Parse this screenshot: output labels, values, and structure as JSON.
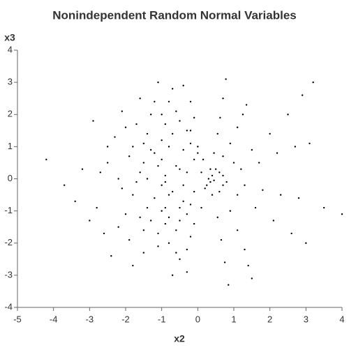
{
  "chart_data": {
    "type": "scatter",
    "title": "Nonindependent Random Normal Variables",
    "x_label": "x2",
    "y_label": "x3",
    "color": "#000000",
    "xlim": [
      -5,
      4
    ],
    "ylim": [
      -4,
      4
    ],
    "xticks": [
      -5,
      -4,
      -3,
      -2,
      -1,
      0,
      1,
      2,
      3,
      4
    ],
    "yticks": [
      -4,
      -3,
      -2,
      -1,
      0,
      1,
      2,
      3,
      4
    ],
    "x": [
      -0.5,
      -1.2,
      -0.8,
      -1.6,
      -0.3,
      -0.9,
      -2.1,
      -0.6,
      -1.4,
      -0.2,
      -1.0,
      -1.8,
      -0.4,
      -2.5,
      -1.1,
      -0.7,
      -1.5,
      -0.1,
      -2.8,
      -0.9,
      -1.3,
      -0.5,
      -1.9,
      -3.2,
      -0.3,
      -1.7,
      -0.8,
      -2.3,
      -1.0,
      -0.6,
      -1.2,
      -0.2,
      -2.0,
      -0.4,
      -1.5,
      -3.7,
      -0.7,
      -1.1,
      -2.6,
      -0.9,
      -1.4,
      -0.1,
      -1.8,
      -0.5,
      -2.2,
      -0.8,
      -1.6,
      -0.3,
      -1.0,
      -2.9,
      -0.6,
      -1.3,
      -0.2,
      -2.4,
      -1.7,
      -0.4,
      -0.9,
      -1.1,
      -3.0,
      -0.7,
      -1.9,
      -0.5,
      -1.2,
      -2.7,
      -0.3,
      -1.5,
      -0.8,
      -2.0,
      -1.0,
      -0.1,
      -4.2,
      -0.6,
      -1.4,
      -2.2,
      -0.4,
      -1.6,
      -0.9,
      -3.4,
      -0.2,
      -1.3,
      -2.5,
      -0.7,
      -1.8,
      -1.1,
      -0.5,
      -2.1,
      -0.8,
      -1.5,
      -0.3,
      -1.0,
      0.1,
      0.2,
      0,
      0.1,
      -0.1,
      0.35,
      0.45,
      0.55,
      0.62,
      0.7,
      0.78,
      0.5,
      0.7,
      0.9,
      1.1,
      1.25,
      1.35,
      0.6,
      1.0,
      1.5,
      2.0,
      2.5,
      2.9,
      3.2,
      0.7,
      1.2,
      1.7,
      2.2,
      2.7,
      3.1,
      0.8,
      1.3,
      1.8,
      2.3,
      2.8,
      3.5,
      4.0,
      0.7,
      1.1,
      1.6,
      2.1,
      2.6,
      3.0,
      0.6,
      0.9,
      1.1,
      1.3,
      1.4,
      1.5,
      0.4,
      0.55,
      0.65,
      0.75,
      0.85,
      -0.2,
      0,
      0.15,
      0.3,
      0.35,
      0.4,
      0.25,
      0.45
    ],
    "values": [
      0.3,
      0.8,
      -0.5,
      0.2,
      1.5,
      -1.4,
      -0.3,
      2.1,
      -0.9,
      -1.8,
      1.2,
      1.0,
      -0.7,
      0.5,
      -2.1,
      2.8,
      -1.6,
      0.6,
      -0.9,
      0.1,
      2.0,
      -2.5,
      -1.9,
      0.3,
      -1.1,
      1.7,
      1.0,
      1.3,
      -0.2,
      -1.6,
      -0.6,
      2.4,
      -1.1,
      0.9,
      0.5,
      -0.2,
      -3.0,
      3.0,
      -1.7,
      -0.9,
      1.4,
      -0.4,
      -0.5,
      1.8,
      0,
      -2.0,
      2.5,
      -2.9,
      0.6,
      1.8,
      0.4,
      -1.3,
      1.1,
      -2.4,
      -0.1,
      -0.2,
      1.7,
      -1.7,
      -1.3,
      -0.4,
      0.7,
      -1.3,
      2.4,
      0.2,
      0.2,
      -2.3,
      2.4,
      1.6,
      -1.0,
      -1.4,
      0.6,
      -2.3,
      0,
      -1.5,
      2.9,
      -1.2,
      -0.1,
      -0.7,
      -0.8,
      0.9,
      1.0,
      1.4,
      -2.7,
      0.4,
      -0.9,
      2.1,
      -1.2,
      1.1,
      -2.2,
      2.0,
      0.2,
      -0.3,
      0.8,
      -0.9,
      1.9,
      0.3,
      0.8,
      1.4,
      1.9,
      2.5,
      3.1,
      0.3,
      0.7,
      1.1,
      1.6,
      2.0,
      2.3,
      0.2,
      0.5,
      0.9,
      1.4,
      2.0,
      2.6,
      3.0,
      0.1,
      0.3,
      0.5,
      0.8,
      1.0,
      1.1,
      -0.1,
      -0.2,
      -0.35,
      -0.5,
      -0.6,
      -0.9,
      -1.1,
      -0.2,
      -0.5,
      -0.9,
      -1.3,
      -1.7,
      -2.0,
      -0.4,
      -1.0,
      -1.6,
      -2.2,
      -2.7,
      -3.1,
      -0.5,
      -1.2,
      -1.9,
      -2.6,
      -3.3,
      1.5,
      1.0,
      0.6,
      0,
      -0.1,
      0.1,
      -0.2,
      -0.05
    ]
  }
}
